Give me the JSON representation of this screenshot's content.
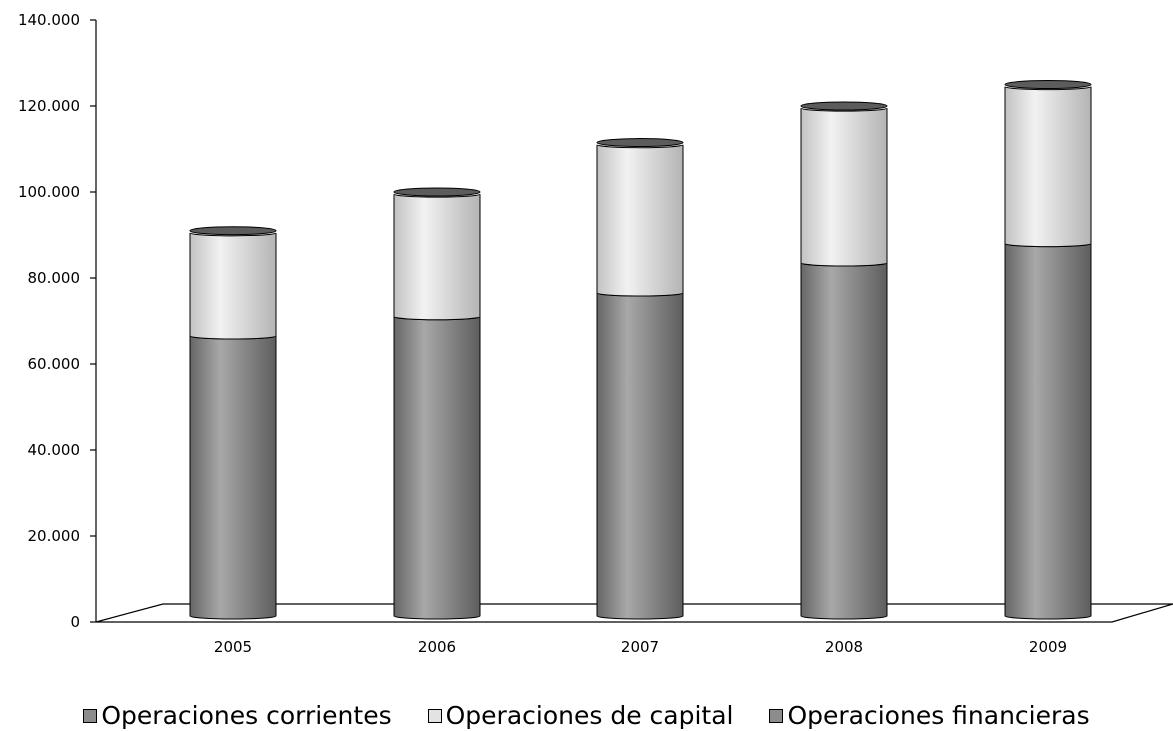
{
  "chart_data": {
    "type": "bar",
    "stacked": true,
    "style": "3d-cylinder",
    "categories": [
      "2005",
      "2006",
      "2007",
      "2008",
      "2009"
    ],
    "series": [
      {
        "name": "Operaciones corrientes",
        "values": [
          66500,
          71000,
          76500,
          83500,
          88000
        ],
        "color": "#8c8c8c"
      },
      {
        "name": "Operaciones de capital",
        "values": [
          24000,
          28500,
          34500,
          36000,
          36500
        ],
        "color": "#d9d9d9"
      },
      {
        "name": "Operaciones financieras",
        "values": [
          500,
          500,
          500,
          500,
          500
        ],
        "color": "#6e6e6e"
      }
    ],
    "ylim": [
      0,
      140000
    ],
    "yticks": [
      "0",
      "20.000",
      "40.000",
      "60.000",
      "80.000",
      "100.000",
      "120.000",
      "140.000"
    ],
    "grid": false,
    "legend": "bottom"
  }
}
